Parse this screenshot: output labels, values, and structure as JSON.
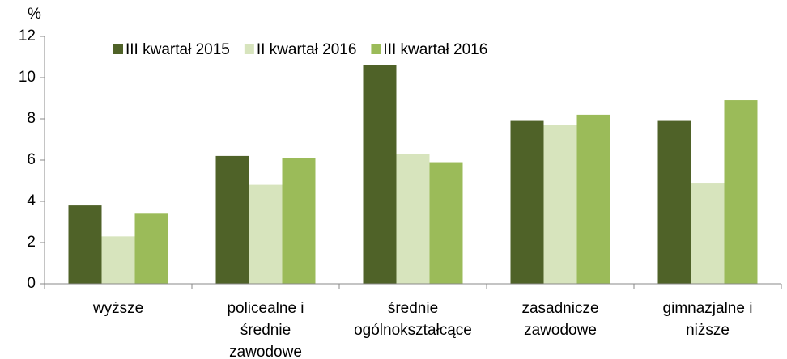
{
  "chart_data": {
    "type": "bar",
    "y_label": "%",
    "categories": [
      "wyższe",
      "policealne i\nśrednie\nzawodowe",
      "średnie\nogólnokształcące",
      "zasadnicze\nzawodowe",
      "gimnazjalne i\nniższe"
    ],
    "series": [
      {
        "name": "III kwartał 2015",
        "color": "#4f6228",
        "values": [
          3.8,
          6.2,
          10.6,
          7.9,
          7.9
        ]
      },
      {
        "name": "II kwartał 2016",
        "color": "#d7e4bd",
        "values": [
          2.3,
          4.8,
          6.3,
          7.7,
          4.9
        ]
      },
      {
        "name": "III kwartał 2016",
        "color": "#9bbb59",
        "values": [
          3.4,
          6.1,
          5.9,
          8.2,
          8.9
        ]
      }
    ],
    "ylim": [
      0,
      12
    ],
    "yticks": [
      0,
      2,
      4,
      6,
      8,
      10,
      12
    ],
    "grid": false,
    "legend": "top"
  }
}
